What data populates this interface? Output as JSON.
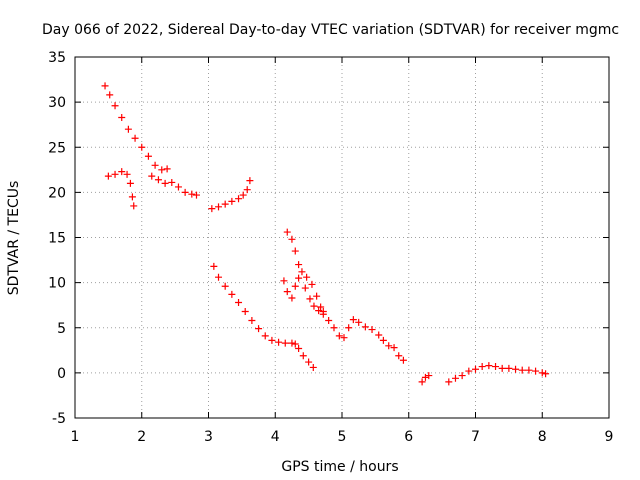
{
  "chart_data": {
    "type": "scatter",
    "title": "Day 066 of 2022, Sidereal Day-to-day VTEC variation (SDTVAR) for receiver mgmc",
    "xlabel": "GPS time / hours",
    "ylabel": "SDTVAR / TECUs",
    "xlim": [
      1,
      9
    ],
    "ylim": [
      -5,
      35
    ],
    "xticks": [
      "1",
      "2",
      "3",
      "4",
      "5",
      "6",
      "7",
      "8",
      "9"
    ],
    "yticks": [
      "-5",
      "0",
      "5",
      "10",
      "15",
      "20",
      "25",
      "30",
      "35"
    ],
    "grid": true,
    "marker": "plus",
    "color": "#ff0000",
    "series": [
      {
        "name": "segment-1-upper",
        "points": [
          [
            1.45,
            31.8
          ],
          [
            1.52,
            30.8
          ],
          [
            1.6,
            29.6
          ],
          [
            1.7,
            28.3
          ],
          [
            1.8,
            27.0
          ],
          [
            1.9,
            26.0
          ],
          [
            2.0,
            25.0
          ],
          [
            2.1,
            24.0
          ],
          [
            2.2,
            23.0
          ],
          [
            2.3,
            22.5
          ],
          [
            2.38,
            22.6
          ]
        ]
      },
      {
        "name": "segment-1-lower",
        "points": [
          [
            1.5,
            21.8
          ],
          [
            1.6,
            22.0
          ],
          [
            1.7,
            22.3
          ],
          [
            1.78,
            22.0
          ],
          [
            1.83,
            21.0
          ],
          [
            1.86,
            19.5
          ],
          [
            1.88,
            18.5
          ]
        ]
      },
      {
        "name": "segment-2",
        "points": [
          [
            2.15,
            21.8
          ],
          [
            2.25,
            21.4
          ],
          [
            2.35,
            21.0
          ],
          [
            2.45,
            21.1
          ],
          [
            2.55,
            20.6
          ],
          [
            2.65,
            20.0
          ],
          [
            2.75,
            19.8
          ],
          [
            2.82,
            19.7
          ]
        ]
      },
      {
        "name": "segment-3",
        "points": [
          [
            3.05,
            18.2
          ],
          [
            3.15,
            18.4
          ],
          [
            3.25,
            18.7
          ],
          [
            3.35,
            19.0
          ],
          [
            3.45,
            19.3
          ],
          [
            3.52,
            19.7
          ],
          [
            3.58,
            20.3
          ],
          [
            3.62,
            21.3
          ]
        ]
      },
      {
        "name": "segment-4",
        "points": [
          [
            3.08,
            11.8
          ],
          [
            3.15,
            10.6
          ],
          [
            3.25,
            9.6
          ],
          [
            3.35,
            8.7
          ],
          [
            3.45,
            7.8
          ],
          [
            3.55,
            6.8
          ],
          [
            3.65,
            5.8
          ],
          [
            3.75,
            4.9
          ],
          [
            3.85,
            4.1
          ],
          [
            3.95,
            3.6
          ],
          [
            4.05,
            3.4
          ],
          [
            4.15,
            3.3
          ],
          [
            4.25,
            3.3
          ],
          [
            4.3,
            3.2
          ],
          [
            4.35,
            2.7
          ],
          [
            4.42,
            1.9
          ],
          [
            4.5,
            1.2
          ],
          [
            4.57,
            0.6
          ]
        ]
      },
      {
        "name": "segment-5",
        "points": [
          [
            4.18,
            15.6
          ],
          [
            4.25,
            14.8
          ],
          [
            4.3,
            13.5
          ],
          [
            4.35,
            12.0
          ],
          [
            4.4,
            11.2
          ],
          [
            4.47,
            10.6
          ],
          [
            4.55,
            9.8
          ],
          [
            4.62,
            8.5
          ],
          [
            4.68,
            7.3
          ],
          [
            4.72,
            6.8
          ]
        ]
      },
      {
        "name": "segment-6",
        "points": [
          [
            4.13,
            10.2
          ],
          [
            4.18,
            9.0
          ],
          [
            4.25,
            8.3
          ],
          [
            4.3,
            9.6
          ],
          [
            4.35,
            10.5
          ],
          [
            4.45,
            9.4
          ],
          [
            4.52,
            8.2
          ],
          [
            4.58,
            7.4
          ],
          [
            4.65,
            6.9
          ],
          [
            4.72,
            6.5
          ],
          [
            4.8,
            5.8
          ],
          [
            4.88,
            5.0
          ],
          [
            4.96,
            4.1
          ],
          [
            5.03,
            3.9
          ],
          [
            5.1,
            5.0
          ],
          [
            5.17,
            5.9
          ],
          [
            5.25,
            5.6
          ],
          [
            5.35,
            5.1
          ],
          [
            5.45,
            4.8
          ],
          [
            5.55,
            4.2
          ],
          [
            5.62,
            3.6
          ],
          [
            5.7,
            3.0
          ],
          [
            5.78,
            2.8
          ],
          [
            5.85,
            1.9
          ],
          [
            5.92,
            1.4
          ]
        ]
      },
      {
        "name": "segment-7",
        "points": [
          [
            6.2,
            -1.0
          ],
          [
            6.25,
            -0.5
          ],
          [
            6.3,
            -0.3
          ]
        ]
      },
      {
        "name": "segment-8",
        "points": [
          [
            6.6,
            -1.0
          ],
          [
            6.7,
            -0.6
          ],
          [
            6.8,
            -0.3
          ],
          [
            6.9,
            0.2
          ],
          [
            7.0,
            0.4
          ],
          [
            7.1,
            0.7
          ],
          [
            7.2,
            0.8
          ],
          [
            7.3,
            0.7
          ],
          [
            7.4,
            0.5
          ],
          [
            7.5,
            0.5
          ],
          [
            7.6,
            0.4
          ],
          [
            7.7,
            0.3
          ],
          [
            7.8,
            0.3
          ],
          [
            7.9,
            0.2
          ],
          [
            8.0,
            0.0
          ],
          [
            8.05,
            -0.1
          ]
        ]
      }
    ]
  }
}
